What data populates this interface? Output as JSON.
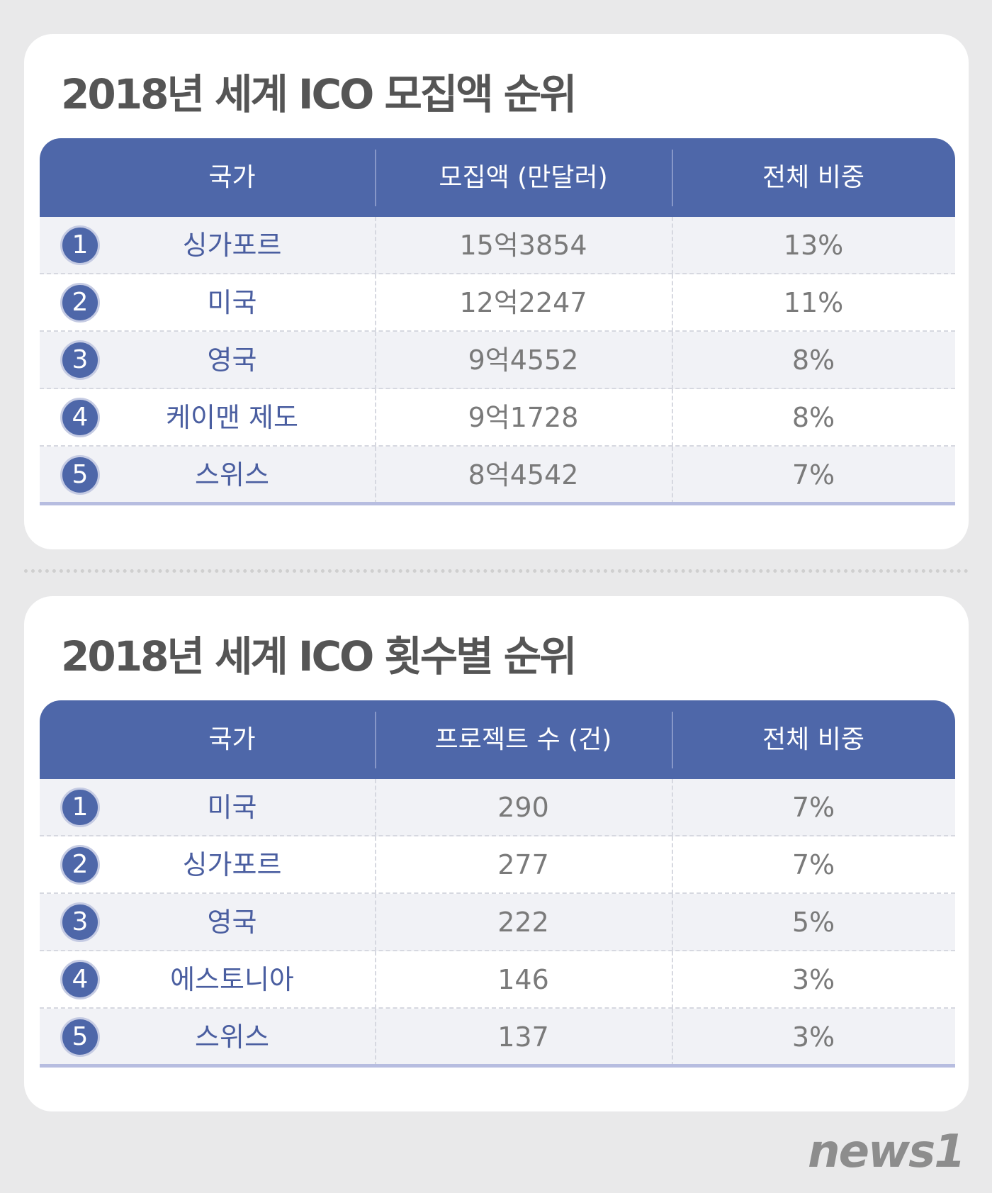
{
  "panels": [
    {
      "title": "2018년 세계 ICO 모집액 순위",
      "table": {
        "header": [
          "국가",
          "모집액 (만달러)",
          "전체 비중"
        ],
        "rows": [
          [
            "1",
            "싱가포르",
            "15억3854",
            "13%"
          ],
          [
            "2",
            "미국",
            "12억2247",
            "11%"
          ],
          [
            "3",
            "영국",
            "9억4552",
            "8%"
          ],
          [
            "4",
            "케이맨 제도",
            "9억1728",
            "8%"
          ],
          [
            "5",
            "스위스",
            "8억4542",
            "7%"
          ]
        ]
      }
    },
    {
      "title": "2018년 세계 ICO 횟수별 순위",
      "table": {
        "header": [
          "국가",
          "프로젝트 수 (건)",
          "전체 비중"
        ],
        "rows": [
          [
            "1",
            "미국",
            "290",
            "7%"
          ],
          [
            "2",
            "싱가포르",
            "277",
            "7%"
          ],
          [
            "3",
            "영국",
            "222",
            "5%"
          ],
          [
            "4",
            "에스토니아",
            "146",
            "3%"
          ],
          [
            "5",
            "스위스",
            "137",
            "3%"
          ]
        ]
      }
    }
  ],
  "logo": "news1"
}
